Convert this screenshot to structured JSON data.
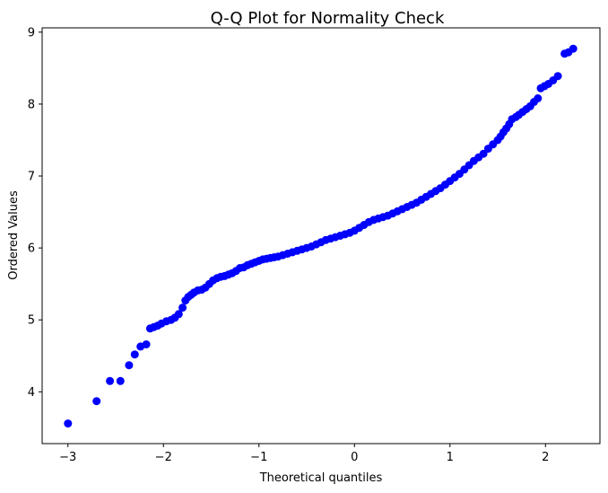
{
  "chart_data": {
    "type": "scatter",
    "title": "Q-Q Plot for Normality Check",
    "xlabel": "Theoretical quantiles",
    "ylabel": "Ordered Values",
    "xlim": [
      -3.27,
      2.57
    ],
    "ylim": [
      3.28,
      9.06
    ],
    "xticks": [
      -3,
      -2,
      -1,
      0,
      1,
      2
    ],
    "yticks": [
      4,
      5,
      6,
      7,
      8,
      9
    ],
    "x_tick_labels": [
      "−3",
      "−2",
      "−1",
      "0",
      "1",
      "2"
    ],
    "y_tick_labels": [
      "4",
      "5",
      "6",
      "7",
      "8",
      "9"
    ],
    "grid": false,
    "marker_color": "#0000ff",
    "series": [
      {
        "x": [
          -3.0,
          -2.7,
          -2.56,
          -2.45,
          -2.36,
          -2.3,
          -2.24,
          -2.18,
          -2.14,
          -2.1,
          -2.06,
          -2.02,
          -1.97,
          -1.92,
          -1.88,
          -1.84,
          -1.8,
          -1.77,
          -1.74,
          -1.71,
          -1.68,
          -1.64,
          -1.6,
          -1.56,
          -1.52,
          -1.48,
          -1.44,
          -1.4,
          -1.36,
          -1.32,
          -1.28,
          -1.24,
          -1.2,
          -1.16,
          -1.12,
          -1.08,
          -1.04,
          -1.0,
          -0.96,
          -0.92,
          -0.88,
          -0.84,
          -0.8,
          -0.75,
          -0.7,
          -0.65,
          -0.6,
          -0.55,
          -0.5,
          -0.45,
          -0.4,
          -0.35,
          -0.3,
          -0.25,
          -0.2,
          -0.15,
          -0.1,
          -0.05,
          0.0,
          0.05,
          0.1,
          0.15,
          0.2,
          0.25,
          0.3,
          0.35,
          0.4,
          0.45,
          0.5,
          0.55,
          0.6,
          0.65,
          0.7,
          0.75,
          0.8,
          0.85,
          0.9,
          0.95,
          1.0,
          1.05,
          1.1,
          1.15,
          1.2,
          1.25,
          1.3,
          1.35,
          1.4,
          1.45,
          1.5,
          1.53,
          1.56,
          1.59,
          1.62,
          1.65,
          1.69,
          1.72,
          1.76,
          1.8,
          1.84,
          1.88,
          1.92,
          1.95,
          1.99,
          2.03,
          2.08,
          2.13,
          2.2,
          2.24,
          2.29
        ],
        "y": [
          3.56,
          3.87,
          4.15,
          4.15,
          4.37,
          4.52,
          4.63,
          4.66,
          4.88,
          4.9,
          4.92,
          4.95,
          4.98,
          5.0,
          5.03,
          5.08,
          5.17,
          5.27,
          5.32,
          5.35,
          5.38,
          5.41,
          5.42,
          5.45,
          5.5,
          5.55,
          5.58,
          5.6,
          5.61,
          5.63,
          5.65,
          5.68,
          5.72,
          5.73,
          5.76,
          5.78,
          5.8,
          5.82,
          5.84,
          5.85,
          5.86,
          5.87,
          5.88,
          5.9,
          5.92,
          5.94,
          5.96,
          5.98,
          6.0,
          6.02,
          6.05,
          6.08,
          6.11,
          6.13,
          6.15,
          6.17,
          6.19,
          6.21,
          6.24,
          6.28,
          6.32,
          6.36,
          6.39,
          6.41,
          6.43,
          6.45,
          6.48,
          6.51,
          6.54,
          6.57,
          6.6,
          6.63,
          6.67,
          6.71,
          6.75,
          6.79,
          6.83,
          6.88,
          6.93,
          6.98,
          7.03,
          7.09,
          7.15,
          7.21,
          7.26,
          7.31,
          7.38,
          7.44,
          7.5,
          7.55,
          7.61,
          7.66,
          7.72,
          7.79,
          7.82,
          7.85,
          7.89,
          7.93,
          7.97,
          8.03,
          8.08,
          8.22,
          8.25,
          8.28,
          8.33,
          8.39,
          8.7,
          8.72,
          8.77
        ]
      }
    ]
  }
}
